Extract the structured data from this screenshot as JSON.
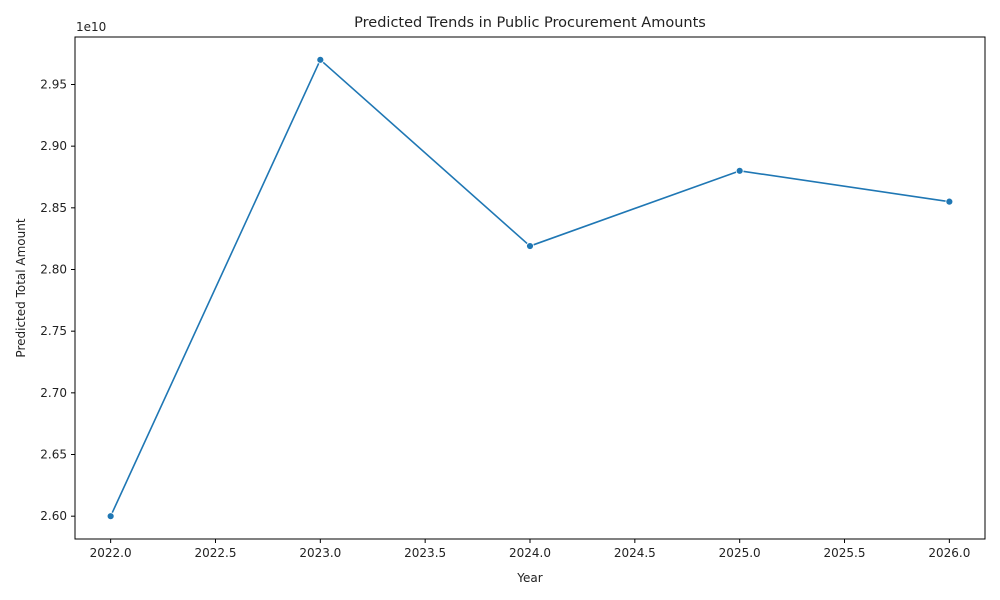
{
  "chart_data": {
    "type": "line",
    "title": "Predicted Trends in Public Procurement Amounts",
    "xlabel": "Year",
    "ylabel": "Predicted Total Amount",
    "y_offset_label": "1e10",
    "x": [
      2022,
      2023,
      2024,
      2025,
      2026
    ],
    "series": [
      {
        "values": [
          26000000000,
          29700000000,
          28190000000,
          28800000000,
          28550000000
        ],
        "color": "#1f77b4",
        "marker": "circle"
      }
    ],
    "xlim": [
      2021.83,
      2026.17
    ],
    "ylim": [
      25815000000,
      29885000000
    ],
    "x_ticks": [
      2022.0,
      2022.5,
      2023.0,
      2023.5,
      2024.0,
      2024.5,
      2025.0,
      2025.5,
      2026.0
    ],
    "x_tick_labels": [
      "2022.0",
      "2022.5",
      "2023.0",
      "2023.5",
      "2024.0",
      "2024.5",
      "2025.0",
      "2025.5",
      "2026.0"
    ],
    "y_ticks": [
      26000000000,
      26500000000,
      27000000000,
      27500000000,
      28000000000,
      28500000000,
      29000000000,
      29500000000
    ],
    "y_tick_labels": [
      "2.60",
      "2.65",
      "2.70",
      "2.75",
      "2.80",
      "2.85",
      "2.90",
      "2.95"
    ],
    "grid": false,
    "legend": "none"
  }
}
